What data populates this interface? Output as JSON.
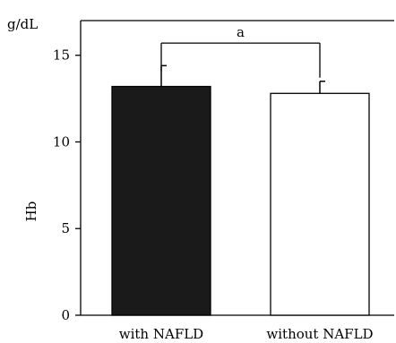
{
  "chart_data": {
    "type": "bar",
    "categories": [
      "with NAFLD",
      "without NAFLD"
    ],
    "values": [
      13.2,
      12.8
    ],
    "errors": [
      1.2,
      0.7
    ],
    "bar_colors": [
      "#1a1a1a",
      "#ffffff"
    ],
    "ylabel": "Hb",
    "unit": "g/dL",
    "ylim": [
      0,
      17
    ],
    "yticks": [
      0,
      5,
      10,
      15
    ],
    "significance": {
      "label": "a",
      "between": [
        0,
        1
      ],
      "level": 15.7
    },
    "grid": false,
    "legend": "none"
  }
}
